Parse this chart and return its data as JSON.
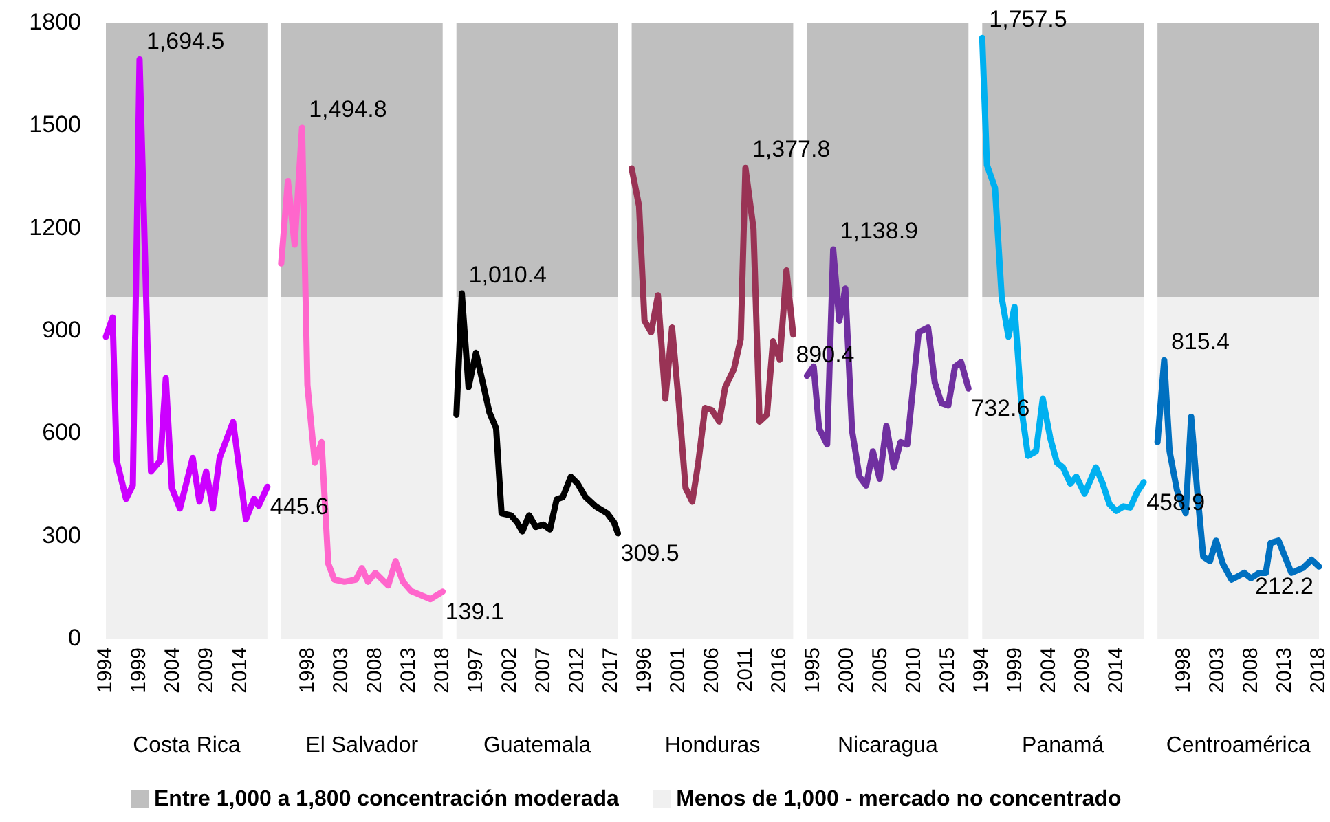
{
  "chart_data": [
    {
      "type": "line",
      "xlabel": "Costa Rica",
      "xlim": [
        1994,
        2018
      ],
      "xticks": [
        1994,
        1999,
        2004,
        2009,
        2014
      ],
      "ylim": [
        0,
        1800
      ],
      "yticks": [
        0,
        300,
        600,
        900,
        1200,
        1500,
        1800
      ],
      "legend": "bottom",
      "line_style": "solid",
      "bands": [
        {
          "axis": "y",
          "from": 1000,
          "to": 1800,
          "label": "Entre 1,000 a 1,800 concentración moderada",
          "color": "#bfbfbf"
        },
        {
          "axis": "y",
          "from": 0,
          "to": 1000,
          "label": "Menos de 1,000 - mercado no concentrado",
          "color": "#f0f0f0"
        }
      ],
      "series": [
        {
          "color": "#cc00ff",
          "x": [
            1994,
            1995,
            1995.6,
            1997,
            1998,
            1999,
            2000.7,
            2002.1,
            2002.9,
            2003.8,
            2005,
            2006.9,
            2007.9,
            2008.9,
            2009.9,
            2010.9,
            2012.9,
            2014.8,
            2016,
            2016.7,
            2018
          ],
          "values": [
            884,
            940,
            522,
            410,
            450,
            1694.5,
            490,
            522,
            763,
            442,
            382,
            530,
            402,
            490,
            382,
            530,
            635,
            350,
            410,
            390,
            445.6
          ],
          "value_labels": [
            null,
            null,
            null,
            null,
            null,
            "1,694.5",
            null,
            null,
            null,
            null,
            null,
            null,
            null,
            null,
            null,
            null,
            null,
            null,
            null,
            null,
            "445.6"
          ]
        }
      ]
    },
    {
      "type": "line",
      "xlabel": "El Salvador",
      "xlim": [
        1994,
        2018
      ],
      "xticks": [
        1998,
        2003,
        2008,
        2013,
        2018
      ],
      "ylim": [
        0,
        1800
      ],
      "tick_labels": "x",
      "line_style": "solid",
      "bands": [
        {
          "axis": "y",
          "from": 1000,
          "to": 1800,
          "color": "#bfbfbf"
        },
        {
          "axis": "y",
          "from": 0,
          "to": 1000,
          "color": "#f0f0f0"
        }
      ],
      "series": [
        {
          "color": "#ff66cc",
          "x": [
            1994,
            1995,
            1996,
            1997.1,
            1997.9,
            1999,
            2000,
            2001,
            2001.9,
            2003.4,
            2005.1,
            2006,
            2006.9,
            2008,
            2009.9,
            2011,
            2012.1,
            2013.3,
            2015,
            2016.2,
            2017,
            2018
          ],
          "values": [
            1098,
            1339,
            1153,
            1494.8,
            743,
            516,
            576,
            221,
            174,
            168,
            174,
            208,
            168,
            194,
            157,
            228,
            168,
            141,
            127,
            117,
            127,
            139.1
          ],
          "value_labels": [
            null,
            null,
            null,
            "1,494.8",
            null,
            null,
            null,
            null,
            null,
            null,
            null,
            null,
            null,
            null,
            null,
            null,
            null,
            null,
            null,
            null,
            null,
            "139.1"
          ]
        }
      ]
    },
    {
      "type": "line",
      "xlabel": "Guatemala",
      "xlim": [
        1994,
        2018
      ],
      "xticks": [
        1997,
        2002,
        2007,
        2012,
        2017
      ],
      "ylim": [
        0,
        1800
      ],
      "tick_labels": "x",
      "line_style": "solid",
      "bands": [
        {
          "axis": "y",
          "from": 1000,
          "to": 1800,
          "color": "#bfbfbf"
        },
        {
          "axis": "y",
          "from": 0,
          "to": 1000,
          "color": "#f0f0f0"
        }
      ],
      "series": [
        {
          "color": "#000000",
          "x": [
            1994,
            1994.8,
            1995.8,
            1996.9,
            1998,
            1998.9,
            1999.9,
            2000.7,
            2002.1,
            2003,
            2003.8,
            2004.8,
            2005.8,
            2006.9,
            2007.9,
            2008.9,
            2009.8,
            2011,
            2012,
            2013.2,
            2014.7,
            2016.4,
            2017.4,
            2018
          ],
          "values": [
            656,
            1010.4,
            737,
            837,
            743,
            663,
            616,
            368,
            362,
            342,
            315,
            362,
            328,
            335,
            321,
            409,
            415,
            475,
            455,
            415,
            388,
            368,
            342,
            309.5
          ],
          "value_labels": [
            null,
            "1,010.4",
            null,
            null,
            null,
            null,
            null,
            null,
            null,
            null,
            null,
            null,
            null,
            null,
            null,
            null,
            null,
            null,
            null,
            null,
            null,
            null,
            null,
            "309.5"
          ]
        }
      ]
    },
    {
      "type": "line",
      "xlabel": "Honduras",
      "xlim": [
        1994,
        2018
      ],
      "xticks": [
        1996,
        2001,
        2006,
        2011,
        2016
      ],
      "ylim": [
        0,
        1800
      ],
      "tick_labels": "x",
      "line_style": "solid",
      "bands": [
        {
          "axis": "y",
          "from": 1000,
          "to": 1800,
          "color": "#bfbfbf"
        },
        {
          "axis": "y",
          "from": 0,
          "to": 1000,
          "color": "#f0f0f0"
        }
      ],
      "series": [
        {
          "color": "#993355",
          "x": [
            1994,
            1995.1,
            1995.9,
            1996.9,
            1997.9,
            1999,
            2000,
            2001,
            2002,
            2003,
            2003.9,
            2004.9,
            2005.9,
            2007,
            2007.9,
            2009.2,
            2010.2,
            2010.9,
            2012.1,
            2013,
            2014.1,
            2015,
            2016,
            2017,
            2018
          ],
          "values": [
            1376,
            1266,
            931,
            897,
            1005,
            703,
            911,
            690,
            442,
            402,
            516,
            676,
            670,
            636,
            737,
            790,
            877,
            1377.8,
            1199,
            636,
            656,
            871,
            817,
            1078,
            890.4
          ],
          "value_labels": [
            null,
            null,
            null,
            null,
            null,
            null,
            null,
            null,
            null,
            null,
            null,
            null,
            null,
            null,
            null,
            null,
            null,
            "1,377.8",
            null,
            null,
            null,
            null,
            null,
            null,
            "890.4"
          ]
        }
      ]
    },
    {
      "type": "line",
      "xlabel": "Nicaragua",
      "xlim": [
        1994,
        2018
      ],
      "xticks": [
        1995,
        2000,
        2005,
        2010,
        2015
      ],
      "ylim": [
        0,
        1800
      ],
      "tick_labels": "x",
      "line_style": "solid",
      "bands": [
        {
          "axis": "y",
          "from": 1000,
          "to": 1800,
          "color": "#bfbfbf"
        },
        {
          "axis": "y",
          "from": 0,
          "to": 1000,
          "color": "#f0f0f0"
        }
      ],
      "series": [
        {
          "color": "#7030a0",
          "x": [
            1994,
            1995,
            1995.8,
            1997,
            1997.9,
            1998.8,
            1999.7,
            2000.7,
            2001.8,
            2002.8,
            2003.8,
            2004.8,
            2005.8,
            2006.9,
            2007.9,
            2008.9,
            2010.6,
            2012,
            2013,
            2014,
            2015,
            2016,
            2016.9,
            2018
          ],
          "values": [
            770,
            797,
            616,
            569,
            1138.9,
            931,
            1025,
            610,
            475,
            449,
            549,
            469,
            623,
            502,
            576,
            569,
            897,
            911,
            750,
            690,
            683,
            797,
            810,
            732.6
          ],
          "value_labels": [
            null,
            null,
            null,
            null,
            "1,138.9",
            null,
            null,
            null,
            null,
            null,
            null,
            null,
            null,
            null,
            null,
            null,
            null,
            null,
            null,
            null,
            null,
            null,
            null,
            "732.6"
          ]
        }
      ]
    },
    {
      "type": "line",
      "xlabel": "Panamá",
      "xlim": [
        1994,
        2018
      ],
      "xticks": [
        1994,
        1999,
        2004,
        2009,
        2014
      ],
      "ylim": [
        0,
        1800
      ],
      "tick_labels": "x",
      "line_style": "solid",
      "bands": [
        {
          "axis": "y",
          "from": 1000,
          "to": 1800,
          "color": "#bfbfbf"
        },
        {
          "axis": "y",
          "from": 0,
          "to": 1000,
          "color": "#f0f0f0"
        }
      ],
      "series": [
        {
          "color": "#00b0f0",
          "x": [
            1994,
            1994.7,
            1995.9,
            1996.9,
            1997.9,
            1998.8,
            1999.9,
            2000.8,
            2002,
            2003,
            2004.1,
            2005.1,
            2006,
            2007.1,
            2008,
            2009.2,
            2010.9,
            2011.9,
            2012.9,
            2013.9,
            2015,
            2016,
            2017,
            2018
          ],
          "values": [
            1757.5,
            1386,
            1319,
            998,
            884,
            971,
            663,
            536,
            549,
            703,
            589,
            516,
            502,
            455,
            475,
            425,
            502,
            455,
            395,
            375,
            388,
            385,
            429,
            458.9
          ],
          "value_labels": [
            "1,757.5",
            null,
            null,
            null,
            null,
            null,
            null,
            null,
            null,
            null,
            null,
            null,
            null,
            null,
            null,
            null,
            null,
            null,
            null,
            null,
            null,
            null,
            null,
            "458.9"
          ]
        }
      ]
    },
    {
      "type": "line",
      "xlabel": "Centroamérica",
      "xlim": [
        1994,
        2018
      ],
      "xticks": [
        1998,
        2003,
        2008,
        2013,
        2018
      ],
      "ylim": [
        0,
        1800
      ],
      "tick_labels": "x",
      "line_style": "solid",
      "bands": [
        {
          "axis": "y",
          "from": 1000,
          "to": 1800,
          "color": "#bfbfbf"
        },
        {
          "axis": "y",
          "from": 0,
          "to": 1000,
          "color": "#f0f0f0"
        }
      ],
      "series": [
        {
          "color": "#0070c0",
          "x": [
            1994,
            1995,
            1995.8,
            1996.9,
            1998.2,
            1999,
            1999.9,
            2000.8,
            2001.8,
            2002.7,
            2003.7,
            2005,
            2006.9,
            2007.9,
            2009.1,
            2010.1,
            2010.8,
            2012,
            2013.9,
            2015.6,
            2016.9,
            2018
          ],
          "values": [
            576,
            815.4,
            549,
            435,
            368,
            650,
            435,
            241,
            228,
            288,
            221,
            174,
            194,
            178,
            194,
            194,
            281,
            288,
            194,
            208,
            232,
            212.2
          ],
          "value_labels": [
            null,
            "815.4",
            null,
            null,
            null,
            null,
            null,
            null,
            null,
            null,
            null,
            null,
            null,
            null,
            null,
            null,
            null,
            null,
            null,
            null,
            null,
            "212.2"
          ]
        }
      ]
    }
  ]
}
